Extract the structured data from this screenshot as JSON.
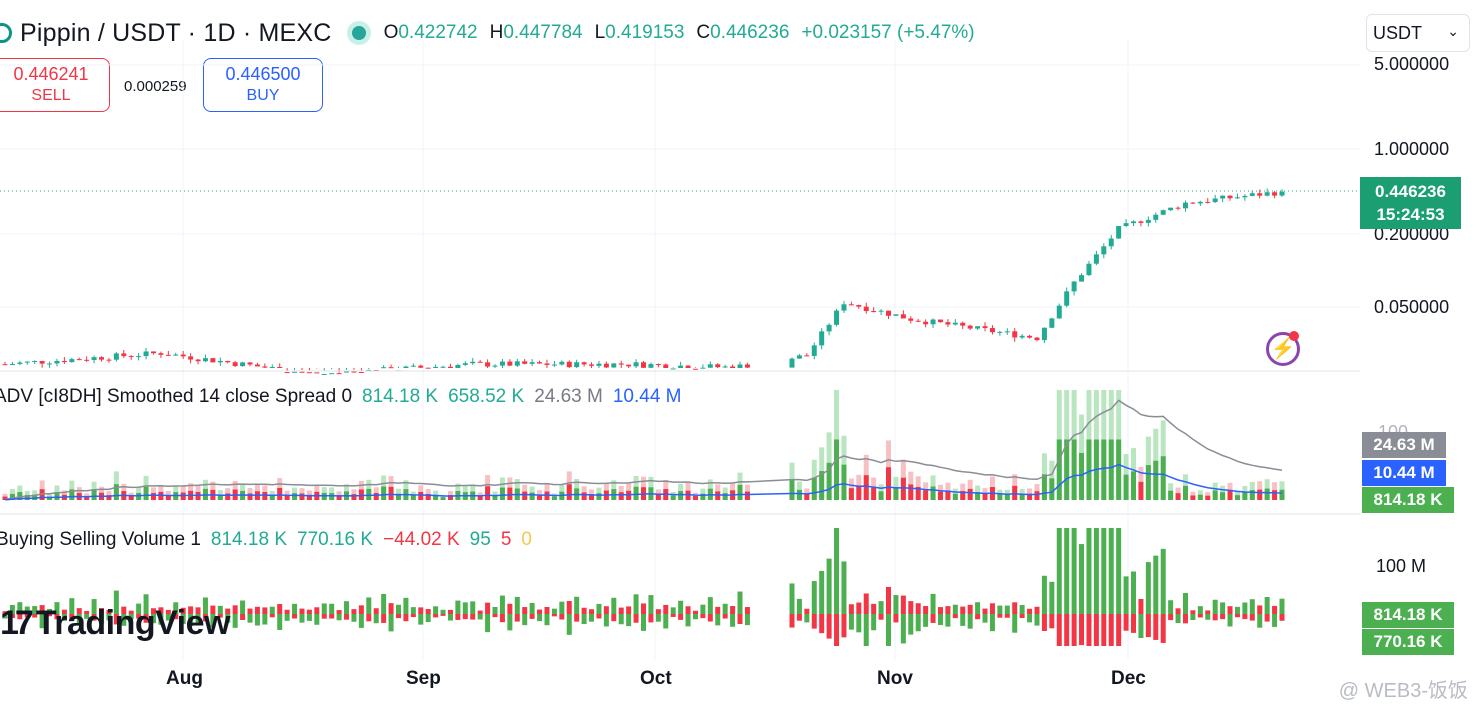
{
  "header": {
    "title": "Pippin / USDT · 1D · MEXC",
    "ohlc": {
      "o_label": "O",
      "o": "0.422742",
      "h_label": "H",
      "h": "0.447784",
      "l_label": "L",
      "l": "0.419153",
      "c_label": "C",
      "c": "0.446236",
      "change": "+0.023157 (+5.47%)"
    },
    "currency_selector": "USDT"
  },
  "trade": {
    "sell_price": "0.446241",
    "sell_label": "SELL",
    "spread": "0.000259",
    "buy_price": "0.446500",
    "buy_label": "BUY"
  },
  "price_axis": {
    "ticks": [
      "5.000000",
      "1.000000",
      "0.200000",
      "0.050000"
    ]
  },
  "last_price": {
    "value": "0.446236",
    "countdown": "15:24:53"
  },
  "adv_panel": {
    "legend": {
      "name": "ADV [cI8DH] Smoothed 14 close Spread 0",
      "v1": "814.18 K",
      "v2": "658.52 K",
      "v3": "24.63 M",
      "v4": "10.44 M"
    },
    "axis_tick": "100",
    "tags": {
      "gray": "24.63 M",
      "blue": "10.44 M",
      "green": "814.18 K"
    }
  },
  "bsv_panel": {
    "legend": {
      "name": "Buying Selling Volume 1",
      "v1": "814.18 K",
      "v2": "770.16 K",
      "v3": "−44.02 K",
      "v4": "95",
      "v5": "5",
      "v6": "0"
    },
    "axis_tick": "100 M",
    "tags": {
      "buy": "814.18 K",
      "sell": "770.16 K"
    }
  },
  "time_axis": {
    "months": [
      "Aug",
      "Sep",
      "Oct",
      "Nov",
      "Dec"
    ]
  },
  "branding": {
    "logo_text": "TradingView",
    "watermark": "@ WEB3-饭饭"
  },
  "colors": {
    "up": "#22ab94",
    "down": "#f23645",
    "ma_gray": "#8a8d96",
    "ma_blue": "#2962ff"
  },
  "chart_data": {
    "type": "candlestick",
    "x_start": "2024-07-04",
    "x_end": "2024-12-23",
    "y_scale": "log",
    "close_approx": [
      {
        "date": "2024-07-04",
        "close": 0.017
      },
      {
        "date": "2024-07-25",
        "close": 0.021
      },
      {
        "date": "2024-08-15",
        "close": 0.014
      },
      {
        "date": "2024-09-05",
        "close": 0.017
      },
      {
        "date": "2024-09-26",
        "close": 0.017
      },
      {
        "date": "2024-10-10",
        "close": 0.016
      },
      {
        "date": "2024-10-20",
        "close": 0.02
      },
      {
        "date": "2024-10-25",
        "close": 0.055
      },
      {
        "date": "2024-11-03",
        "close": 0.04
      },
      {
        "date": "2024-11-20",
        "close": 0.028
      },
      {
        "date": "2024-11-25",
        "close": 0.08
      },
      {
        "date": "2024-12-01",
        "close": 0.22
      },
      {
        "date": "2024-12-10",
        "close": 0.36
      },
      {
        "date": "2024-12-23",
        "close": 0.446236
      }
    ]
  }
}
